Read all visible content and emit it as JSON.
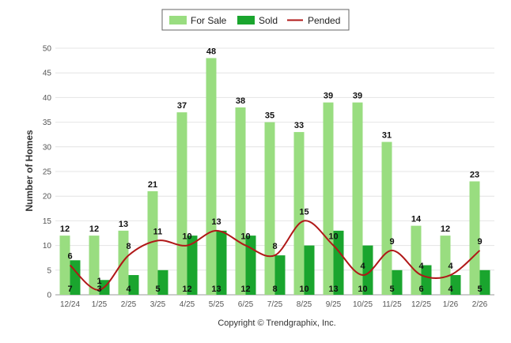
{
  "chart_data": {
    "type": "bar",
    "ylabel": "Number of Homes",
    "xlabel": "",
    "ylim": [
      0,
      50
    ],
    "yticks": [
      0,
      5,
      10,
      15,
      20,
      25,
      30,
      35,
      40,
      45,
      50
    ],
    "grid": true,
    "legend_position": "top-center",
    "categories": [
      "12/24",
      "1/25",
      "2/25",
      "3/25",
      "4/25",
      "5/25",
      "6/25",
      "7/25",
      "8/25",
      "9/25",
      "10/25",
      "11/25",
      "12/25",
      "1/26",
      "2/26"
    ],
    "series": [
      {
        "name": "For Sale",
        "type": "bar",
        "color": "#99dd80",
        "values": [
          12,
          12,
          13,
          21,
          37,
          48,
          38,
          35,
          33,
          39,
          39,
          31,
          14,
          12,
          23
        ]
      },
      {
        "name": "Sold",
        "type": "bar",
        "color": "#1aa52e",
        "values": [
          7,
          3,
          4,
          5,
          12,
          13,
          12,
          8,
          10,
          13,
          10,
          5,
          6,
          4,
          5
        ]
      },
      {
        "name": "Pended",
        "type": "line",
        "color": "#b01818",
        "values": [
          6,
          1,
          8,
          11,
          10,
          13,
          10,
          8,
          15,
          10,
          4,
          9,
          4,
          4,
          9
        ]
      }
    ]
  },
  "footer": {
    "copyright": "Copyright © Trendgraphix, Inc."
  }
}
